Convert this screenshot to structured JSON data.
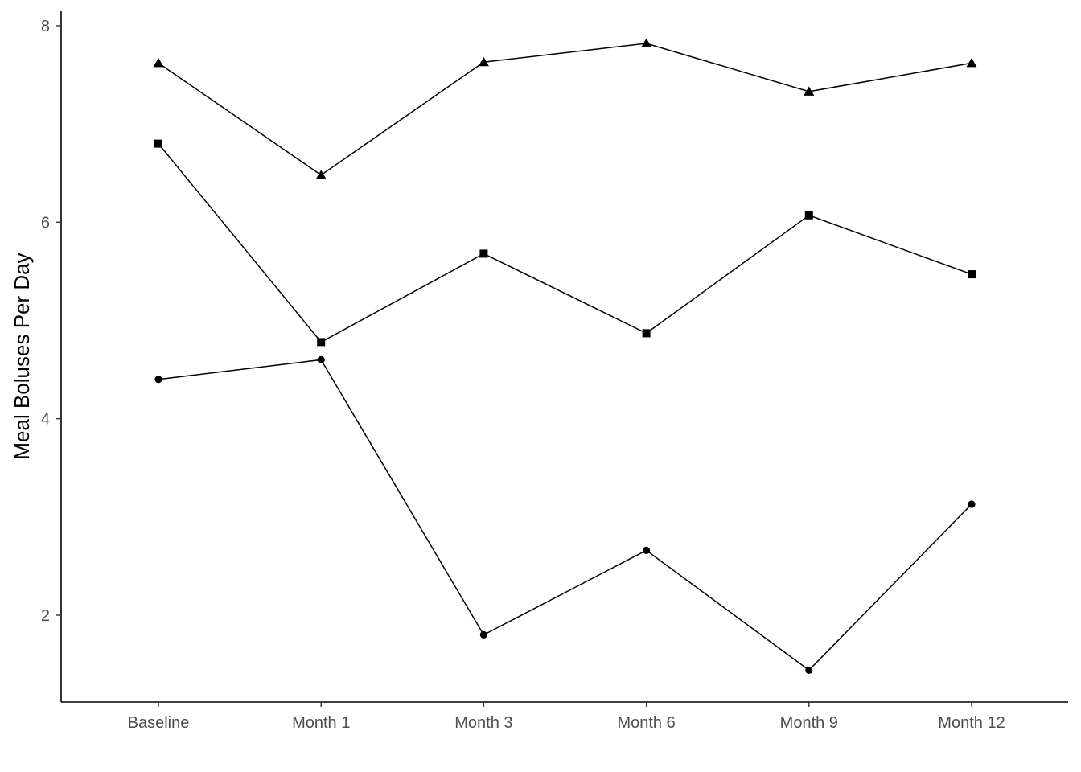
{
  "chart_data": {
    "type": "line",
    "title": "",
    "xlabel": "",
    "ylabel": "Meal Boluses Per Day",
    "categories": [
      "Baseline",
      "Month 1",
      "Month 3",
      "Month 6",
      "Month 9",
      "Month 12"
    ],
    "yticks": [
      2,
      4,
      6,
      8
    ],
    "ylim": [
      1.13,
      8.13
    ],
    "grid": false,
    "legend": "none",
    "series": [
      {
        "marker": "triangle",
        "values": [
          7.62,
          6.48,
          7.63,
          7.82,
          7.33,
          7.62
        ]
      },
      {
        "marker": "square",
        "values": [
          6.8,
          4.78,
          5.68,
          4.87,
          6.07,
          5.47
        ]
      },
      {
        "marker": "circle",
        "values": [
          4.4,
          4.6,
          1.8,
          2.66,
          1.44,
          3.13
        ]
      }
    ],
    "colors": {
      "line": "#000000",
      "tick_label": "#4d4d4d"
    }
  }
}
